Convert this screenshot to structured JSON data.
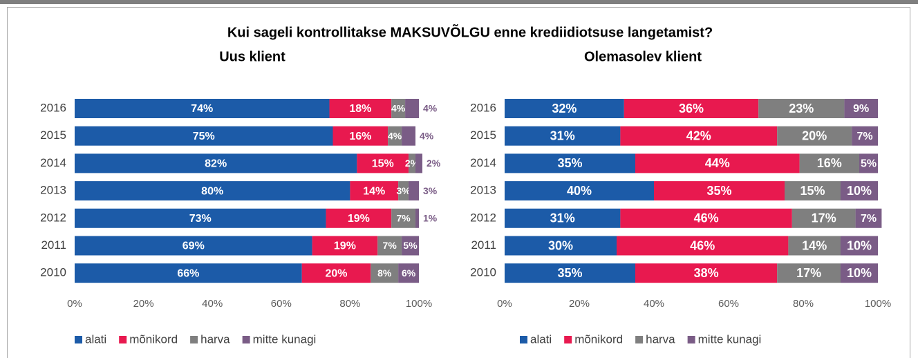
{
  "title": "Kui sageli kontrollitakse MAKSUVÕLGU enne krediidiotsuse langetamist?",
  "chart_data": [
    {
      "type": "stacked-bar-horizontal",
      "title": "Uus klient",
      "categories": [
        "2016",
        "2015",
        "2014",
        "2013",
        "2012",
        "2011",
        "2010"
      ],
      "series": [
        {
          "name": "alati",
          "color": "#1c5ba8",
          "values": [
            74,
            75,
            82,
            80,
            73,
            69,
            66
          ],
          "value_labels": [
            "74%",
            "75%",
            "82%",
            "80%",
            "73%",
            "69%",
            "66%"
          ]
        },
        {
          "name": "mõnikord",
          "color": "#e8194f",
          "values": [
            18,
            16,
            15,
            14,
            19,
            19,
            20
          ],
          "value_labels": [
            "18%",
            "16%",
            "15%",
            "14%",
            "19%",
            "19%",
            "20%"
          ]
        },
        {
          "name": "harva",
          "color": "#7f7f7f",
          "values": [
            4,
            4,
            2,
            3,
            7,
            7,
            8
          ],
          "value_labels": [
            "4%",
            "4%",
            "2%",
            "3%",
            "7%",
            "7%",
            "8%"
          ]
        },
        {
          "name": "mitte kunagi",
          "color": "#7a5c86",
          "values": [
            4,
            4,
            2,
            3,
            1,
            5,
            6
          ],
          "value_labels": [
            "4%",
            "4%",
            "2%",
            "3%",
            "1%",
            "5%",
            "6%"
          ]
        }
      ],
      "xlim": [
        0,
        100
      ],
      "xticks": [
        {
          "value": 0,
          "label": "0%"
        },
        {
          "value": 20,
          "label": "20%"
        },
        {
          "value": 40,
          "label": "40%"
        },
        {
          "value": 60,
          "label": "60%"
        },
        {
          "value": 80,
          "label": "80%"
        },
        {
          "value": 100,
          "label": "100%"
        }
      ],
      "legend": "bottom"
    },
    {
      "type": "stacked-bar-horizontal",
      "title": "Olemasolev klient",
      "categories": [
        "2016",
        "2015",
        "2014",
        "2013",
        "2012",
        "2011",
        "2010"
      ],
      "series": [
        {
          "name": "alati",
          "color": "#1c5ba8",
          "values": [
            32,
            31,
            35,
            40,
            31,
            30,
            35
          ],
          "value_labels": [
            "32%",
            "31%",
            "35%",
            "40%",
            "31%",
            "30%",
            "35%"
          ]
        },
        {
          "name": "mõnikord",
          "color": "#e8194f",
          "values": [
            36,
            42,
            44,
            35,
            46,
            46,
            38
          ],
          "value_labels": [
            "36%",
            "42%",
            "44%",
            "35%",
            "46%",
            "46%",
            "38%"
          ]
        },
        {
          "name": "harva",
          "color": "#7f7f7f",
          "values": [
            23,
            20,
            16,
            15,
            17,
            14,
            17
          ],
          "value_labels": [
            "23%",
            "20%",
            "16%",
            "15%",
            "17%",
            "14%",
            "17%"
          ]
        },
        {
          "name": "mitte kunagi",
          "color": "#7a5c86",
          "values": [
            9,
            7,
            5,
            10,
            7,
            10,
            10
          ],
          "value_labels": [
            "9%",
            "7%",
            "5%",
            "10%",
            "7%",
            "10%",
            "10%"
          ]
        }
      ],
      "xlim": [
        0,
        100
      ],
      "xticks": [
        {
          "value": 0,
          "label": "0%"
        },
        {
          "value": 20,
          "label": "20%"
        },
        {
          "value": 40,
          "label": "40%"
        },
        {
          "value": 60,
          "label": "60%"
        },
        {
          "value": 80,
          "label": "80%"
        },
        {
          "value": 100,
          "label": "100%"
        }
      ],
      "legend": "bottom"
    }
  ]
}
